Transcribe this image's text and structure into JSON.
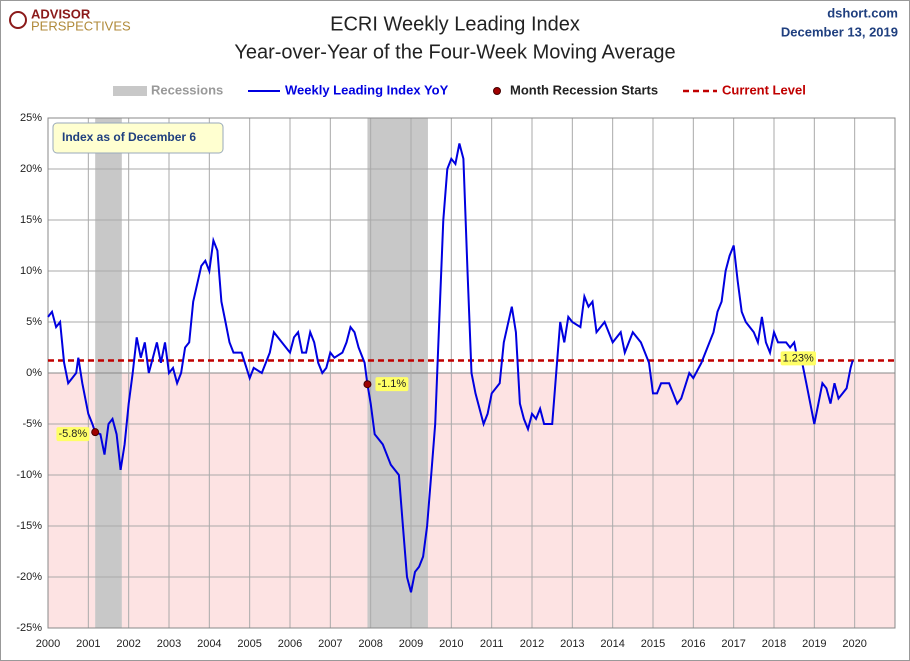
{
  "chart_data": {
    "type": "line",
    "title": "ECRI Weekly Leading Index",
    "subtitle": "Year-over-Year of the Four-Week Moving Average",
    "logo": {
      "top": "ADVISOR",
      "bottom": "PERSPECTIVES"
    },
    "source": "dshort.com",
    "date": "December 13, 2019",
    "annotation": "Index as of December 6",
    "x": [
      2000.0,
      2000.1,
      2000.2,
      2000.3,
      2000.4,
      2000.5,
      2000.6,
      2000.7,
      2000.75,
      2000.85,
      2001.0,
      2001.1,
      2001.17,
      2001.3,
      2001.4,
      2001.5,
      2001.6,
      2001.7,
      2001.8,
      2001.9,
      2002.0,
      2002.1,
      2002.2,
      2002.3,
      2002.4,
      2002.5,
      2002.6,
      2002.7,
      2002.8,
      2002.9,
      2003.0,
      2003.1,
      2003.2,
      2003.3,
      2003.4,
      2003.5,
      2003.6,
      2003.8,
      2003.9,
      2004.0,
      2004.1,
      2004.2,
      2004.3,
      2004.4,
      2004.5,
      2004.6,
      2004.8,
      2005.0,
      2005.1,
      2005.3,
      2005.5,
      2005.6,
      2005.8,
      2006.0,
      2006.1,
      2006.2,
      2006.3,
      2006.4,
      2006.5,
      2006.6,
      2006.7,
      2006.8,
      2006.9,
      2007.0,
      2007.1,
      2007.3,
      2007.4,
      2007.5,
      2007.6,
      2007.7,
      2007.85,
      2007.92,
      2008.0,
      2008.1,
      2008.3,
      2008.5,
      2008.7,
      2008.8,
      2008.9,
      2009.0,
      2009.1,
      2009.2,
      2009.3,
      2009.4,
      2009.5,
      2009.6,
      2009.7,
      2009.8,
      2009.9,
      2010.0,
      2010.1,
      2010.2,
      2010.3,
      2010.4,
      2010.5,
      2010.6,
      2010.8,
      2010.9,
      2011.0,
      2011.2,
      2011.3,
      2011.5,
      2011.6,
      2011.7,
      2011.8,
      2011.9,
      2012.0,
      2012.1,
      2012.2,
      2012.3,
      2012.5,
      2012.6,
      2012.7,
      2012.8,
      2012.9,
      2013.0,
      2013.2,
      2013.3,
      2013.4,
      2013.5,
      2013.6,
      2013.8,
      2014.0,
      2014.2,
      2014.3,
      2014.5,
      2014.7,
      2014.9,
      2015.0,
      2015.1,
      2015.2,
      2015.4,
      2015.6,
      2015.7,
      2015.9,
      2016.0,
      2016.2,
      2016.3,
      2016.5,
      2016.6,
      2016.7,
      2016.8,
      2016.9,
      2017.0,
      2017.1,
      2017.2,
      2017.3,
      2017.5,
      2017.6,
      2017.7,
      2017.8,
      2017.9,
      2018.0,
      2018.1,
      2018.3,
      2018.4,
      2018.5,
      2018.6,
      2018.7,
      2018.8,
      2018.9,
      2019.0,
      2019.1,
      2019.2,
      2019.3,
      2019.4,
      2019.5,
      2019.6,
      2019.7,
      2019.8,
      2019.9,
      2019.95
    ],
    "series": [
      {
        "name": "Weekly Leading Index YoY",
        "color": "#0000e0",
        "values": [
          5.5,
          6,
          4.5,
          5,
          1,
          -1,
          -0.5,
          0,
          1.5,
          -1,
          -4,
          -5,
          -5.8,
          -6,
          -8,
          -5,
          -4.5,
          -6,
          -9.5,
          -7,
          -3,
          0,
          3.5,
          1.5,
          3,
          0,
          1.5,
          3,
          1,
          3,
          0,
          0.5,
          -1,
          0,
          2.5,
          3,
          7,
          10.5,
          11,
          10,
          13,
          12,
          7,
          5,
          3,
          2,
          2,
          -0.5,
          0.5,
          0,
          2,
          4,
          3,
          2,
          3.5,
          4,
          2,
          2,
          4,
          3,
          1,
          0,
          0.5,
          2,
          1.5,
          2,
          3,
          4.5,
          4,
          2.5,
          1,
          -1.1,
          -3,
          -6,
          -7,
          -9,
          -10,
          -15,
          -20,
          -21.5,
          -19.5,
          -19,
          -18,
          -15,
          -10,
          -5,
          5,
          15,
          20,
          21,
          20.5,
          22.5,
          21,
          10,
          0,
          -2,
          -5,
          -4,
          -2,
          -1,
          3,
          6.5,
          4,
          -3,
          -4.5,
          -5.5,
          -4,
          -4.5,
          -3.5,
          -5,
          -5,
          0,
          5,
          3,
          5.5,
          5,
          4.5,
          7.5,
          6.5,
          7,
          4,
          5,
          3,
          4,
          2,
          4,
          3,
          1,
          -2,
          -2,
          -1,
          -1,
          -3,
          -2.5,
          0,
          -0.5,
          1,
          2,
          4,
          6,
          7,
          10,
          11.5,
          12.5,
          9,
          6,
          5,
          4,
          3,
          5.5,
          3,
          2,
          4,
          3,
          3,
          2.5,
          3,
          1,
          1,
          -1,
          -3,
          -5,
          -3,
          -1,
          -1.5,
          -3,
          -1,
          -2.5,
          -2,
          -1.5,
          0.5,
          1.23
        ]
      }
    ],
    "recessions": {
      "name": "Recessions",
      "color": "#c8c8c8",
      "ranges": [
        [
          2001.17,
          2001.83
        ],
        [
          2007.92,
          2009.42
        ]
      ]
    },
    "recession_starts": {
      "name": "Month Recession Starts",
      "color": "#a00000",
      "x": [
        2001.17,
        2007.92
      ],
      "values": [
        -5.8,
        -1.1
      ],
      "value_labels": [
        "-5.8%",
        "-1.1%"
      ]
    },
    "current_level": {
      "name": "Current Level",
      "color": "#c00000",
      "value": 1.23,
      "value_label": "1.23%"
    },
    "xlim": [
      2000,
      2021
    ],
    "xticks": [
      2000,
      2001,
      2002,
      2003,
      2004,
      2005,
      2006,
      2007,
      2008,
      2009,
      2010,
      2011,
      2012,
      2013,
      2014,
      2015,
      2016,
      2017,
      2018,
      2019,
      2020
    ],
    "ylim": [
      -25,
      25
    ],
    "yticks": [
      {
        "value": -25,
        "label": "-25%"
      },
      {
        "value": -20,
        "label": "-20%"
      },
      {
        "value": -15,
        "label": "-15%"
      },
      {
        "value": -10,
        "label": "-10%"
      },
      {
        "value": -5,
        "label": "-5%"
      },
      {
        "value": 0,
        "label": "0%"
      },
      {
        "value": 5,
        "label": "5%"
      },
      {
        "value": 10,
        "label": "10%"
      },
      {
        "value": 15,
        "label": "15%"
      },
      {
        "value": 20,
        "label": "20%"
      },
      {
        "value": 25,
        "label": "25%"
      }
    ],
    "grid": true
  }
}
